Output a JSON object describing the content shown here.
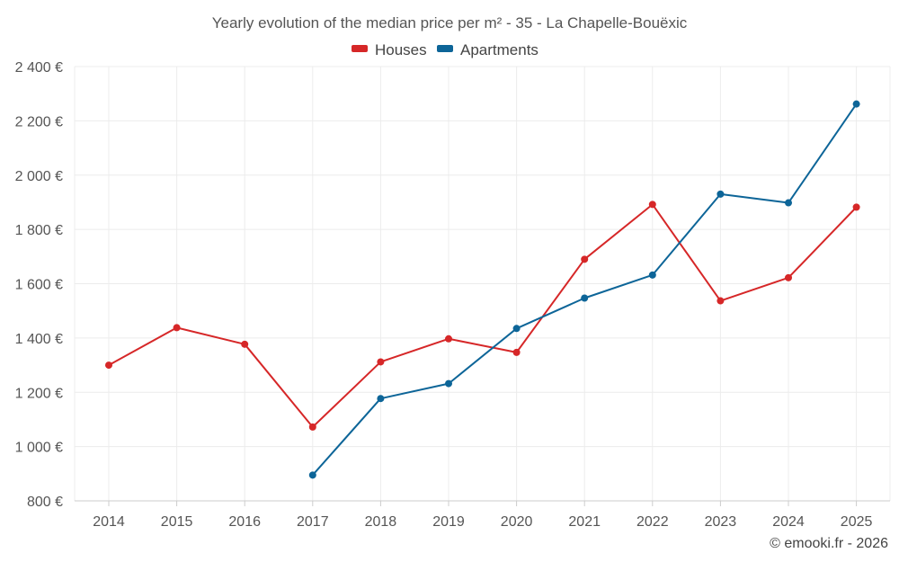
{
  "chart_data": {
    "type": "line",
    "title": "Yearly evolution of the median price per m² - 35 - La Chapelle-Bouëxic",
    "categories": [
      "2014",
      "2015",
      "2016",
      "2017",
      "2018",
      "2019",
      "2020",
      "2021",
      "2022",
      "2023",
      "2024",
      "2025"
    ],
    "series": [
      {
        "name": "Houses",
        "color": "#d62728",
        "values": [
          1300,
          1438,
          1377,
          1072,
          1312,
          1397,
          1347,
          1690,
          1892,
          1537,
          1622,
          1882
        ]
      },
      {
        "name": "Apartments",
        "color": "#0d6598",
        "values": [
          null,
          null,
          null,
          895,
          1177,
          1232,
          1435,
          1547,
          1632,
          1930,
          1898,
          2262
        ]
      }
    ],
    "ylim": [
      800,
      2400
    ],
    "yticks": [
      800,
      1000,
      1200,
      1400,
      1600,
      1800,
      2000,
      2200,
      2400
    ],
    "ytick_labels": [
      "800 €",
      "1 000 €",
      "1 200 €",
      "1 400 €",
      "1 600 €",
      "1 800 €",
      "2 000 €",
      "2 200 €",
      "2 400 €"
    ],
    "xlabel": "",
    "ylabel": "",
    "grid": true,
    "legend_position": "top-center"
  },
  "credit": "© emooki.fr - 2026"
}
